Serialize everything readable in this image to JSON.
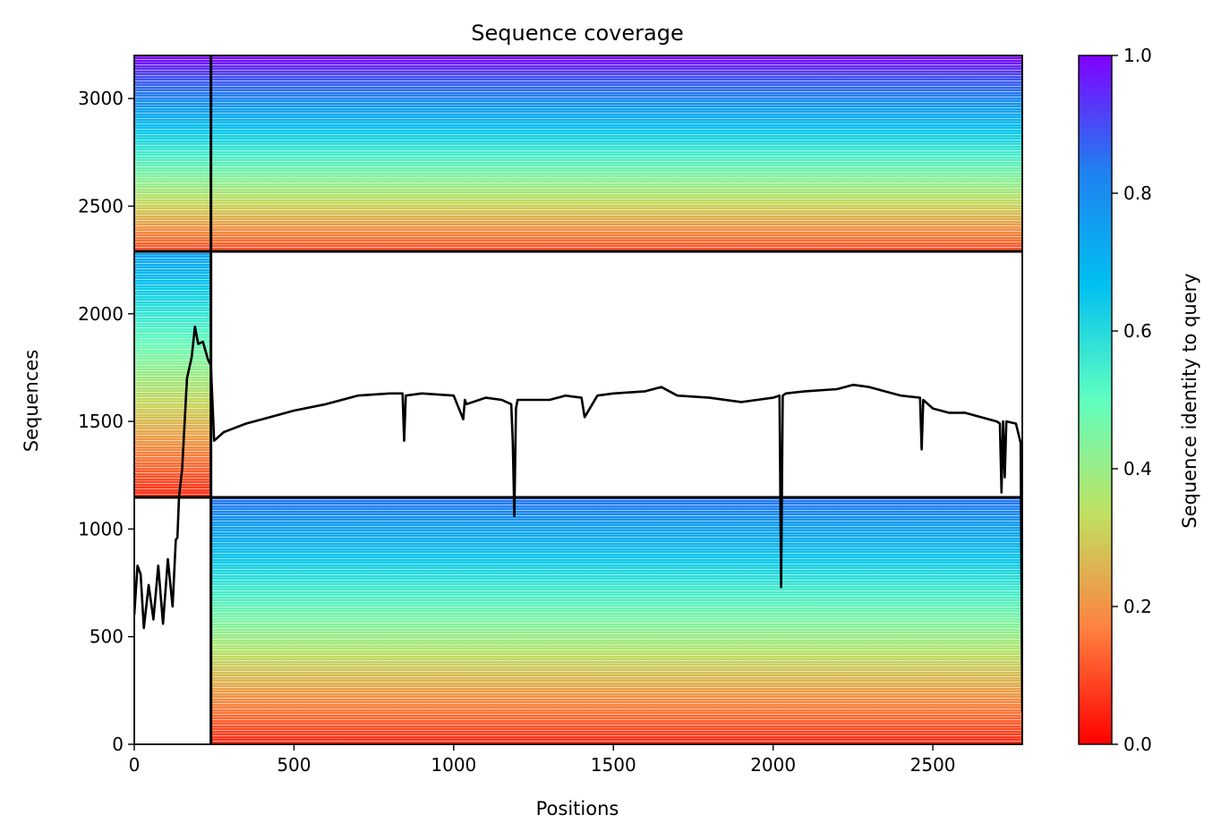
{
  "chart_data": {
    "type": "heatmap",
    "title": "Sequence coverage",
    "xlabel": "Positions",
    "ylabel": "Sequences",
    "colorbar_label": "Sequence identity to query",
    "xlim": [
      0,
      2780
    ],
    "ylim": [
      0,
      3200
    ],
    "xticks": [
      0,
      500,
      1000,
      1500,
      2000,
      2500
    ],
    "yticks": [
      0,
      500,
      1000,
      1500,
      2000,
      2500,
      3000
    ],
    "colorbar_range": [
      0.0,
      1.0
    ],
    "colorbar_ticks": [
      "0.0",
      "0.2",
      "0.4",
      "0.6",
      "0.8",
      "1.0"
    ],
    "colormap": "rainbow",
    "colormap_stops": [
      "#ff0000",
      "#ff8040",
      "#c0e060",
      "#60ffc0",
      "#00c0f0",
      "#2080f0",
      "#8000ff"
    ],
    "block_boundaries": {
      "x": 240,
      "y": [
        1147,
        2290
      ]
    },
    "blocks": [
      {
        "x_range": [
          0,
          240
        ],
        "y_range": [
          0,
          1147
        ],
        "coverage": "none"
      },
      {
        "x_range": [
          240,
          2780
        ],
        "y_range": [
          0,
          1147
        ],
        "identity_range": [
          0.05,
          0.85
        ]
      },
      {
        "x_range": [
          0,
          240
        ],
        "y_range": [
          1147,
          2290
        ],
        "identity_range": [
          0.05,
          0.75
        ]
      },
      {
        "x_range": [
          240,
          2780
        ],
        "y_range": [
          1147,
          2290
        ],
        "coverage": "none"
      },
      {
        "x_range": [
          0,
          240
        ],
        "y_range": [
          2290,
          3200
        ],
        "identity_range": [
          0.1,
          1.0
        ]
      },
      {
        "x_range": [
          240,
          2780
        ],
        "y_range": [
          2290,
          3200
        ],
        "identity_range": [
          0.1,
          1.0
        ]
      }
    ],
    "coverage_line": {
      "color": "#000000",
      "x": [
        0,
        10,
        20,
        30,
        45,
        60,
        75,
        90,
        105,
        120,
        130,
        135,
        140,
        150,
        165,
        180,
        190,
        200,
        215,
        230,
        240,
        250,
        280,
        350,
        400,
        500,
        600,
        700,
        800,
        840,
        845,
        850,
        900,
        1000,
        1030,
        1035,
        1040,
        1100,
        1150,
        1180,
        1185,
        1190,
        1195,
        1200,
        1300,
        1350,
        1400,
        1410,
        1450,
        1500,
        1600,
        1650,
        1700,
        1800,
        1900,
        1950,
        2000,
        2020,
        2025,
        2030,
        2040,
        2100,
        2200,
        2250,
        2300,
        2400,
        2460,
        2465,
        2470,
        2500,
        2550,
        2600,
        2650,
        2700,
        2710,
        2715,
        2720,
        2725,
        2730,
        2760,
        2775,
        2780
      ],
      "y": [
        600,
        830,
        790,
        540,
        740,
        580,
        830,
        560,
        860,
        640,
        950,
        960,
        1150,
        1280,
        1700,
        1800,
        1940,
        1860,
        1870,
        1790,
        1760,
        1410,
        1450,
        1490,
        1510,
        1550,
        1580,
        1620,
        1630,
        1630,
        1410,
        1620,
        1630,
        1620,
        1510,
        1600,
        1580,
        1610,
        1600,
        1580,
        1410,
        1060,
        1560,
        1600,
        1600,
        1620,
        1610,
        1520,
        1620,
        1630,
        1640,
        1660,
        1620,
        1610,
        1590,
        1600,
        1610,
        1620,
        730,
        1620,
        1630,
        1640,
        1650,
        1670,
        1660,
        1620,
        1610,
        1370,
        1600,
        1560,
        1540,
        1540,
        1520,
        1500,
        1490,
        1170,
        1500,
        1240,
        1500,
        1490,
        1400,
        150
      ]
    },
    "grid": false,
    "legend": "none"
  }
}
